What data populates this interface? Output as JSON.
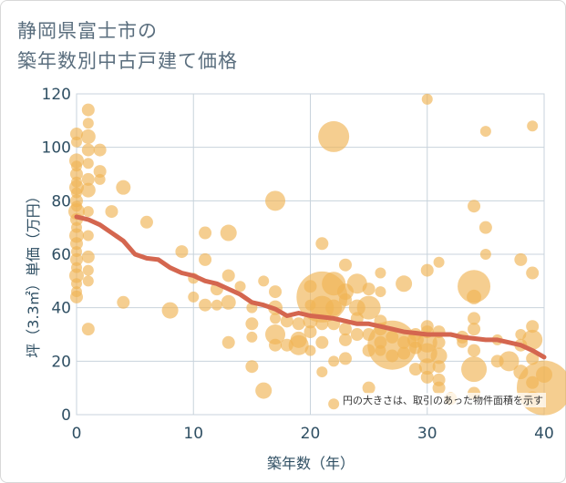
{
  "title_line1": "静岡県富士市の",
  "title_line2": "築年数別中古戸建て価格",
  "chart_data": {
    "type": "scatter",
    "xlabel": "築年数（年）",
    "ylabel": "坪（3.3㎡）単価（万円）",
    "xlim": [
      0,
      40
    ],
    "ylim": [
      0,
      120
    ],
    "xticks": [
      "0",
      "10",
      "20",
      "30",
      "40"
    ],
    "yticks": [
      "0",
      "20",
      "40",
      "60",
      "80",
      "100",
      "120"
    ],
    "grid": true,
    "note": "円の大きさは、取引のあった物件面積を示す",
    "colors": {
      "bubble": "#f0b454",
      "trend": "#d4664f",
      "grid": "#c8d3dc",
      "axis": "#2f4f63"
    },
    "points": [
      [
        0,
        105,
        7
      ],
      [
        0,
        102,
        6
      ],
      [
        0,
        95,
        8
      ],
      [
        0,
        93,
        6
      ],
      [
        0,
        90,
        7
      ],
      [
        0,
        87,
        6
      ],
      [
        0,
        85,
        8
      ],
      [
        0,
        83,
        6
      ],
      [
        0,
        80,
        7
      ],
      [
        0,
        78,
        6
      ],
      [
        0,
        76,
        9
      ],
      [
        0,
        73,
        7
      ],
      [
        0,
        70,
        6
      ],
      [
        0,
        67,
        8
      ],
      [
        0,
        64,
        7
      ],
      [
        0,
        61,
        6
      ],
      [
        0,
        58,
        7
      ],
      [
        0,
        55,
        6
      ],
      [
        0,
        52,
        8
      ],
      [
        0,
        49,
        6
      ],
      [
        0,
        46,
        6
      ],
      [
        0,
        44,
        7
      ],
      [
        1,
        114,
        7
      ],
      [
        1,
        109,
        6
      ],
      [
        1,
        104,
        8
      ],
      [
        1,
        99,
        7
      ],
      [
        1,
        94,
        6
      ],
      [
        1,
        88,
        7
      ],
      [
        1,
        84,
        8
      ],
      [
        1,
        76,
        6
      ],
      [
        1,
        67,
        6
      ],
      [
        1,
        59,
        7
      ],
      [
        1,
        54,
        6
      ],
      [
        1,
        50,
        6
      ],
      [
        1,
        32,
        7
      ],
      [
        2,
        99,
        7
      ],
      [
        2,
        91,
        7
      ],
      [
        2,
        88,
        6
      ],
      [
        3,
        76,
        7
      ],
      [
        4,
        85,
        8
      ],
      [
        4,
        42,
        7
      ],
      [
        6,
        72,
        7
      ],
      [
        8,
        39,
        9
      ],
      [
        9,
        61,
        7
      ],
      [
        10,
        51,
        6
      ],
      [
        10,
        44,
        6
      ],
      [
        11,
        68,
        7
      ],
      [
        11,
        58,
        7
      ],
      [
        11,
        41,
        7
      ],
      [
        12,
        47,
        7
      ],
      [
        12,
        41,
        6
      ],
      [
        13,
        68,
        9
      ],
      [
        13,
        52,
        7
      ],
      [
        13,
        42,
        8
      ],
      [
        13,
        27,
        7
      ],
      [
        14,
        48,
        6
      ],
      [
        15,
        40,
        6
      ],
      [
        15,
        34,
        7
      ],
      [
        15,
        29,
        6
      ],
      [
        15,
        18,
        7
      ],
      [
        16,
        50,
        6
      ],
      [
        16,
        9,
        9
      ],
      [
        17,
        80,
        11
      ],
      [
        17,
        46,
        7
      ],
      [
        17,
        40,
        8
      ],
      [
        17,
        36,
        6
      ],
      [
        17,
        30,
        11
      ],
      [
        17,
        26,
        7
      ],
      [
        18,
        35,
        7
      ],
      [
        18,
        26,
        7
      ],
      [
        19,
        34,
        7
      ],
      [
        19,
        28,
        9
      ],
      [
        19,
        26,
        11
      ],
      [
        20,
        48,
        7
      ],
      [
        20,
        41,
        6
      ],
      [
        20,
        35,
        8
      ],
      [
        20,
        31,
        7
      ],
      [
        20,
        24,
        6
      ],
      [
        21,
        64,
        7
      ],
      [
        21,
        44,
        28
      ],
      [
        21,
        40,
        13
      ],
      [
        21,
        34,
        7
      ],
      [
        21,
        27,
        7
      ],
      [
        21,
        16,
        6
      ],
      [
        22,
        104,
        17
      ],
      [
        22,
        49,
        13
      ],
      [
        22,
        40,
        9
      ],
      [
        22,
        34,
        7
      ],
      [
        22,
        20,
        6
      ],
      [
        22,
        4,
        6
      ],
      [
        23,
        56,
        7
      ],
      [
        23,
        46,
        9
      ],
      [
        23,
        43,
        7
      ],
      [
        23,
        32,
        7
      ],
      [
        23,
        28,
        7
      ],
      [
        23,
        21,
        7
      ],
      [
        24,
        49,
        11
      ],
      [
        24,
        40,
        9
      ],
      [
        24,
        36,
        7
      ],
      [
        24,
        30,
        7
      ],
      [
        25,
        47,
        7
      ],
      [
        25,
        40,
        13
      ],
      [
        25,
        30,
        7
      ],
      [
        25,
        24,
        7
      ],
      [
        25,
        10,
        7
      ],
      [
        26,
        53,
        6
      ],
      [
        26,
        46,
        6
      ],
      [
        26,
        35,
        7
      ],
      [
        26,
        32,
        7
      ],
      [
        26,
        27,
        7
      ],
      [
        26,
        24,
        6
      ],
      [
        27,
        29,
        7
      ],
      [
        27,
        26,
        27
      ],
      [
        27,
        22,
        7
      ],
      [
        28,
        49,
        9
      ],
      [
        28,
        27,
        7
      ],
      [
        28,
        23,
        7
      ],
      [
        29,
        30,
        7
      ],
      [
        29,
        28,
        9
      ],
      [
        29,
        25,
        7
      ],
      [
        29,
        17,
        7
      ],
      [
        30,
        118,
        6
      ],
      [
        30,
        54,
        7
      ],
      [
        30,
        33,
        7
      ],
      [
        30,
        31,
        7
      ],
      [
        30,
        27,
        11
      ],
      [
        30,
        23,
        11
      ],
      [
        30,
        18,
        9
      ],
      [
        30,
        14,
        7
      ],
      [
        31,
        57,
        6
      ],
      [
        31,
        31,
        7
      ],
      [
        31,
        27,
        7
      ],
      [
        31,
        22,
        9
      ],
      [
        31,
        18,
        7
      ],
      [
        31,
        13,
        7
      ],
      [
        31,
        10,
        7
      ],
      [
        32,
        6,
        7
      ],
      [
        33,
        29,
        7
      ],
      [
        33,
        27,
        6
      ],
      [
        34,
        78,
        7
      ],
      [
        34,
        48,
        18
      ],
      [
        34,
        44,
        8
      ],
      [
        34,
        36,
        7
      ],
      [
        34,
        32,
        7
      ],
      [
        34,
        24,
        7
      ],
      [
        34,
        17,
        14
      ],
      [
        34,
        8,
        7
      ],
      [
        35,
        106,
        6
      ],
      [
        35,
        70,
        7
      ],
      [
        35,
        60,
        6
      ],
      [
        36,
        28,
        6
      ],
      [
        36,
        20,
        7
      ],
      [
        37,
        20,
        11
      ],
      [
        38,
        58,
        7
      ],
      [
        38,
        30,
        6
      ],
      [
        38,
        26,
        7
      ],
      [
        38,
        16,
        8
      ],
      [
        39,
        108,
        6
      ],
      [
        39,
        53,
        7
      ],
      [
        39,
        33,
        7
      ],
      [
        39,
        28,
        11
      ],
      [
        39,
        21,
        7
      ],
      [
        39,
        12,
        7
      ],
      [
        39,
        6,
        8
      ],
      [
        40,
        15,
        9
      ],
      [
        40,
        10,
        30
      ]
    ],
    "trend": [
      [
        0,
        74
      ],
      [
        1,
        73
      ],
      [
        2,
        71
      ],
      [
        3,
        68
      ],
      [
        4,
        65
      ],
      [
        5,
        60
      ],
      [
        6,
        58.5
      ],
      [
        7,
        58
      ],
      [
        8,
        55
      ],
      [
        9,
        53
      ],
      [
        10,
        52
      ],
      [
        11,
        50
      ],
      [
        12,
        49
      ],
      [
        13,
        47
      ],
      [
        14,
        45
      ],
      [
        15,
        42
      ],
      [
        16,
        41
      ],
      [
        17,
        39.5
      ],
      [
        18,
        37
      ],
      [
        19,
        38
      ],
      [
        20,
        37
      ],
      [
        21,
        36.5
      ],
      [
        22,
        36
      ],
      [
        23,
        35
      ],
      [
        24,
        34
      ],
      [
        25,
        34
      ],
      [
        26,
        33
      ],
      [
        27,
        32
      ],
      [
        28,
        31
      ],
      [
        29,
        30.5
      ],
      [
        30,
        30
      ],
      [
        31,
        30
      ],
      [
        32,
        30
      ],
      [
        33,
        29
      ],
      [
        34,
        28.5
      ],
      [
        35,
        28
      ],
      [
        36,
        28
      ],
      [
        37,
        27
      ],
      [
        38,
        26
      ],
      [
        39,
        24
      ],
      [
        40,
        21.5
      ]
    ]
  }
}
